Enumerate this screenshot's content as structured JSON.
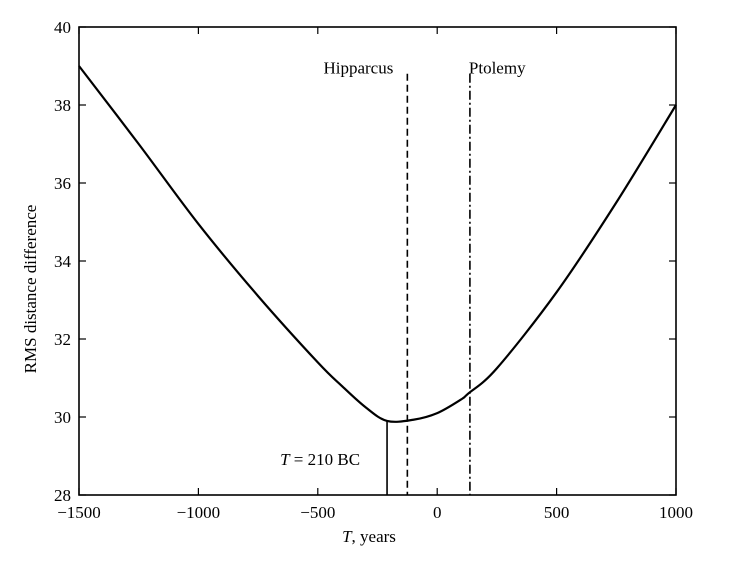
{
  "chart_data": {
    "type": "line",
    "title": "",
    "xlabel_italic": "T",
    "xlabel_rest": ", years",
    "ylabel": "RMS distance difference",
    "xlim": [
      -1500,
      1000
    ],
    "ylim": [
      28,
      40
    ],
    "grid": false,
    "x_ticks": [
      -1500,
      -1000,
      -500,
      0,
      500,
      1000
    ],
    "x_tick_labels": [
      "−1500",
      "−1000",
      "−500",
      "0",
      "500",
      "1000"
    ],
    "y_ticks": [
      28,
      30,
      32,
      34,
      36,
      38,
      40
    ],
    "y_tick_labels": [
      "28",
      "30",
      "32",
      "34",
      "36",
      "38",
      "40"
    ],
    "series": [
      {
        "x": [
          -1500,
          -1250,
          -1000,
          -750,
          -500,
          -400,
          -300,
          -210,
          -100,
          0,
          100,
          130,
          250,
          500,
          750,
          1000
        ],
        "y": [
          39.0,
          37.0,
          34.95,
          33.1,
          31.4,
          30.8,
          30.25,
          29.9,
          29.93,
          30.1,
          30.45,
          30.6,
          31.25,
          33.2,
          35.5,
          38.0
        ]
      }
    ],
    "markers": [
      {
        "label": "Hipparcus",
        "x": -125,
        "y_top": 38.8,
        "style": "dashed"
      },
      {
        "label": "Ptolemy",
        "x": 137,
        "y_top": 38.8,
        "style": "dashdot"
      }
    ],
    "minimum": {
      "x": -210,
      "y": 29.9,
      "label_italic": "T",
      "label_rest": " = 210 BC"
    },
    "colors": {
      "line": "#000000",
      "background": "#ffffff"
    }
  }
}
